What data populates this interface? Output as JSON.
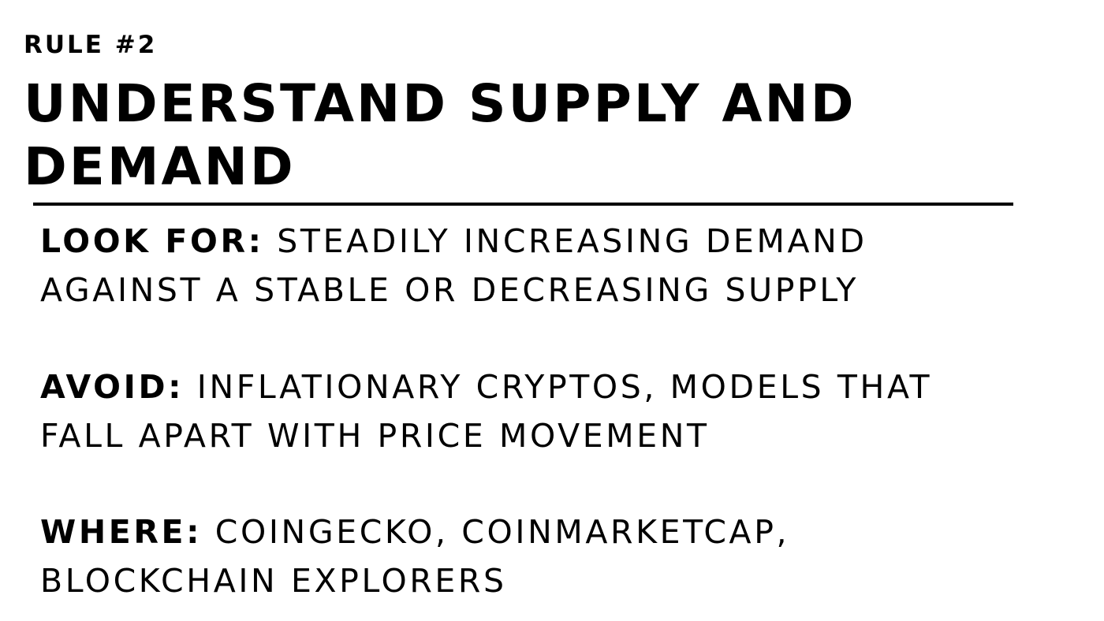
{
  "kicker": "RULE #2",
  "headline": "UNDERSTAND SUPPLY AND DEMAND",
  "sections": [
    {
      "label": "LOOK FOR:",
      "lines": [
        "STEADILY INCREASING DEMAND",
        "AGAINST A STABLE OR DECREASING SUPPLY"
      ]
    },
    {
      "label": "AVOID:",
      "lines": [
        "INFLATIONARY CRYPTOS, MODELS THAT",
        "FALL APART WITH PRICE MOVEMENT"
      ]
    },
    {
      "label": "WHERE:",
      "lines": [
        "COINGECKO, COINMARKETCAP,",
        "BLOCKCHAIN EXPLORERS"
      ]
    }
  ]
}
